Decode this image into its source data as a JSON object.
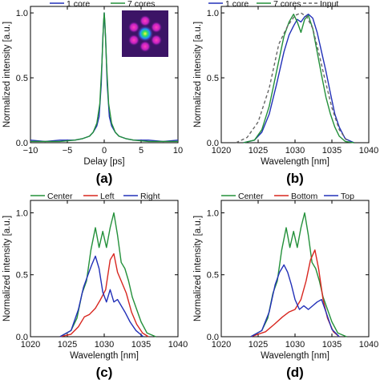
{
  "colors": {
    "green": "#23903a",
    "blue": "#2230b8",
    "red": "#d8261f",
    "gray": "#666666"
  },
  "chart_data": [
    {
      "panel": "(a)",
      "type": "line",
      "xlabel": "Delay [ps]",
      "ylabel": "Normalized intensity [a.u.]",
      "xlim": [
        -10,
        10
      ],
      "ylim": [
        0,
        1.05
      ],
      "xticks": [
        -10,
        -5,
        0,
        5,
        10
      ],
      "xtick_labels": [
        "−10",
        "−5",
        "0",
        "5",
        "10"
      ],
      "yticks": [
        0,
        0.5,
        1.0
      ],
      "ytick_labels": [
        "0.0",
        "0.5",
        "1.0"
      ],
      "inset": "7-core mode image",
      "series": [
        {
          "name": "1 core",
          "color": "blue",
          "dash": "",
          "x": [
            -10,
            -8,
            -6,
            -4,
            -3,
            -2,
            -1.5,
            -1,
            -0.7,
            -0.4,
            -0.2,
            0,
            0.2,
            0.4,
            0.7,
            1,
            1.5,
            2,
            3,
            4,
            6,
            8,
            10
          ],
          "y": [
            0.02,
            0.01,
            0.02,
            0.02,
            0.03,
            0.05,
            0.08,
            0.13,
            0.2,
            0.45,
            0.8,
            1.0,
            0.8,
            0.45,
            0.2,
            0.13,
            0.08,
            0.05,
            0.03,
            0.02,
            0.02,
            0.01,
            0.02
          ]
        },
        {
          "name": "7 cores",
          "color": "green",
          "dash": "",
          "x": [
            -10,
            -8,
            -6,
            -4,
            -3,
            -2,
            -1.5,
            -1,
            -0.6,
            -0.3,
            -0.1,
            0,
            0.1,
            0.3,
            0.6,
            1,
            1.5,
            2,
            3,
            4,
            6,
            8,
            10
          ],
          "y": [
            0.01,
            0.01,
            0.01,
            0.02,
            0.03,
            0.05,
            0.08,
            0.15,
            0.3,
            0.62,
            0.92,
            1.0,
            0.92,
            0.62,
            0.3,
            0.15,
            0.08,
            0.05,
            0.03,
            0.02,
            0.01,
            0.01,
            0.01
          ]
        }
      ]
    },
    {
      "panel": "(b)",
      "type": "line",
      "xlabel": "Wavelength [nm]",
      "ylabel": "Normalized intensity [a.u.]",
      "xlim": [
        1020,
        1040
      ],
      "ylim": [
        0,
        1.05
      ],
      "xticks": [
        1020,
        1025,
        1030,
        1035,
        1040
      ],
      "xtick_labels": [
        "1020",
        "1025",
        "1030",
        "1035",
        "1040"
      ],
      "yticks": [
        0,
        0.5,
        1.0
      ],
      "ytick_labels": [
        "0.0",
        "0.5",
        "1.0"
      ],
      "series": [
        {
          "name": "1 core",
          "color": "blue",
          "dash": "",
          "x": [
            1023,
            1024.5,
            1025.5,
            1026.5,
            1027.5,
            1028.5,
            1029.2,
            1029.8,
            1030.3,
            1030.8,
            1031.3,
            1031.8,
            1032.4,
            1033,
            1033.6,
            1034.2,
            1034.8,
            1035.4,
            1036,
            1036.8,
            1038
          ],
          "y": [
            0,
            0.02,
            0.08,
            0.22,
            0.45,
            0.7,
            0.83,
            0.9,
            0.95,
            0.93,
            0.97,
            0.99,
            0.96,
            0.85,
            0.7,
            0.55,
            0.38,
            0.22,
            0.12,
            0.03,
            0
          ]
        },
        {
          "name": "7 cores",
          "color": "green",
          "dash": "",
          "x": [
            1023,
            1024.5,
            1025.5,
            1026.5,
            1027.5,
            1028.5,
            1029.2,
            1029.8,
            1030.3,
            1030.8,
            1031.3,
            1031.8,
            1032.4,
            1033,
            1033.6,
            1034.2,
            1034.8,
            1035.4,
            1036,
            1036.8,
            1038
          ],
          "y": [
            0,
            0.02,
            0.1,
            0.28,
            0.55,
            0.82,
            0.93,
            0.99,
            0.93,
            0.85,
            0.95,
            0.98,
            0.88,
            0.7,
            0.52,
            0.35,
            0.22,
            0.12,
            0.05,
            0.01,
            0
          ]
        },
        {
          "name": "Input",
          "color": "gray",
          "dash": "4,3",
          "x": [
            1022,
            1023.5,
            1025,
            1026.5,
            1027.8,
            1029,
            1030,
            1030.8,
            1031.6,
            1032.4,
            1033.2,
            1034,
            1035,
            1036,
            1037
          ],
          "y": [
            0,
            0.04,
            0.16,
            0.42,
            0.76,
            0.9,
            0.98,
            1.0,
            0.97,
            0.88,
            0.7,
            0.5,
            0.27,
            0.1,
            0.02
          ]
        }
      ]
    },
    {
      "panel": "(c)",
      "type": "line",
      "xlabel": "Wavelength [nm]",
      "ylabel": "Normalized intensity [a.u.]",
      "xlim": [
        1020,
        1040
      ],
      "ylim": [
        0,
        1.1
      ],
      "xticks": [
        1020,
        1025,
        1030,
        1035,
        1040
      ],
      "xtick_labels": [
        "1020",
        "1025",
        "1030",
        "1035",
        "1040"
      ],
      "yticks": [
        0,
        0.5,
        1.0
      ],
      "ytick_labels": [
        "0.0",
        "0.5",
        "1.0"
      ],
      "series": [
        {
          "name": "Center",
          "color": "green",
          "dash": "",
          "x": [
            1024,
            1025.5,
            1026.3,
            1027,
            1027.6,
            1028.2,
            1028.8,
            1029.3,
            1029.8,
            1030.3,
            1030.8,
            1031.3,
            1031.8,
            1032.3,
            1032.8,
            1033.3,
            1033.8,
            1034.4,
            1035,
            1035.8,
            1037
          ],
          "y": [
            0,
            0.05,
            0.15,
            0.35,
            0.45,
            0.7,
            0.88,
            0.72,
            0.85,
            0.72,
            0.88,
            1.0,
            0.82,
            0.6,
            0.55,
            0.45,
            0.32,
            0.22,
            0.12,
            0.03,
            0
          ]
        },
        {
          "name": "Left",
          "color": "red",
          "dash": "",
          "x": [
            1024,
            1025.5,
            1026.5,
            1027.3,
            1028,
            1028.8,
            1029.5,
            1030.2,
            1030.8,
            1031.3,
            1031.8,
            1032.3,
            1033,
            1033.7,
            1034.4,
            1035.2,
            1036
          ],
          "y": [
            0,
            0.02,
            0.08,
            0.16,
            0.18,
            0.23,
            0.3,
            0.38,
            0.62,
            0.67,
            0.52,
            0.45,
            0.35,
            0.2,
            0.1,
            0.03,
            0
          ]
        },
        {
          "name": "Right",
          "color": "blue",
          "dash": "",
          "x": [
            1024,
            1025.5,
            1026.5,
            1027.2,
            1027.8,
            1028.3,
            1028.8,
            1029.3,
            1029.8,
            1030.3,
            1030.8,
            1031.3,
            1031.8,
            1032.3,
            1032.8,
            1033.5,
            1034.3,
            1035.3
          ],
          "y": [
            0,
            0.05,
            0.22,
            0.4,
            0.5,
            0.58,
            0.65,
            0.55,
            0.36,
            0.28,
            0.38,
            0.28,
            0.3,
            0.25,
            0.2,
            0.12,
            0.05,
            0
          ]
        }
      ]
    },
    {
      "panel": "(d)",
      "type": "line",
      "xlabel": "Wavelength [nm]",
      "ylabel": "Normalized intensity [a.u.]",
      "xlim": [
        1020,
        1040
      ],
      "ylim": [
        0,
        1.1
      ],
      "xticks": [
        1020,
        1025,
        1030,
        1035,
        1040
      ],
      "xtick_labels": [
        "1020",
        "1025",
        "1030",
        "1035",
        "1040"
      ],
      "yticks": [
        0,
        0.5,
        1.0
      ],
      "ytick_labels": [
        "0.0",
        "0.5",
        "1.0"
      ],
      "series": [
        {
          "name": "Center",
          "color": "green",
          "dash": "",
          "x": [
            1024,
            1025.5,
            1026.3,
            1027,
            1027.6,
            1028.2,
            1028.8,
            1029.3,
            1029.8,
            1030.3,
            1030.8,
            1031.3,
            1031.8,
            1032.3,
            1032.8,
            1033.3,
            1033.8,
            1034.4,
            1035,
            1035.8,
            1037
          ],
          "y": [
            0,
            0.05,
            0.15,
            0.35,
            0.45,
            0.7,
            0.88,
            0.72,
            0.85,
            0.72,
            0.88,
            1.0,
            0.82,
            0.6,
            0.55,
            0.45,
            0.32,
            0.22,
            0.12,
            0.03,
            0
          ]
        },
        {
          "name": "Bottom",
          "color": "red",
          "dash": "",
          "x": [
            1024,
            1026,
            1027.2,
            1028.3,
            1029.2,
            1030,
            1030.8,
            1031.5,
            1032.1,
            1032.7,
            1033.2,
            1033.8,
            1034.4,
            1035.2,
            1036
          ],
          "y": [
            0,
            0.04,
            0.1,
            0.16,
            0.2,
            0.22,
            0.3,
            0.45,
            0.62,
            0.7,
            0.55,
            0.3,
            0.15,
            0.04,
            0
          ]
        },
        {
          "name": "Top",
          "color": "blue",
          "dash": "",
          "x": [
            1024,
            1025.5,
            1026.5,
            1027.3,
            1027.9,
            1028.5,
            1029,
            1029.5,
            1030,
            1030.6,
            1031.2,
            1031.8,
            1032.4,
            1033,
            1033.6,
            1034.2,
            1035,
            1036
          ],
          "y": [
            0,
            0.05,
            0.2,
            0.42,
            0.52,
            0.58,
            0.52,
            0.42,
            0.3,
            0.22,
            0.25,
            0.22,
            0.25,
            0.28,
            0.3,
            0.2,
            0.06,
            0
          ]
        }
      ]
    }
  ]
}
